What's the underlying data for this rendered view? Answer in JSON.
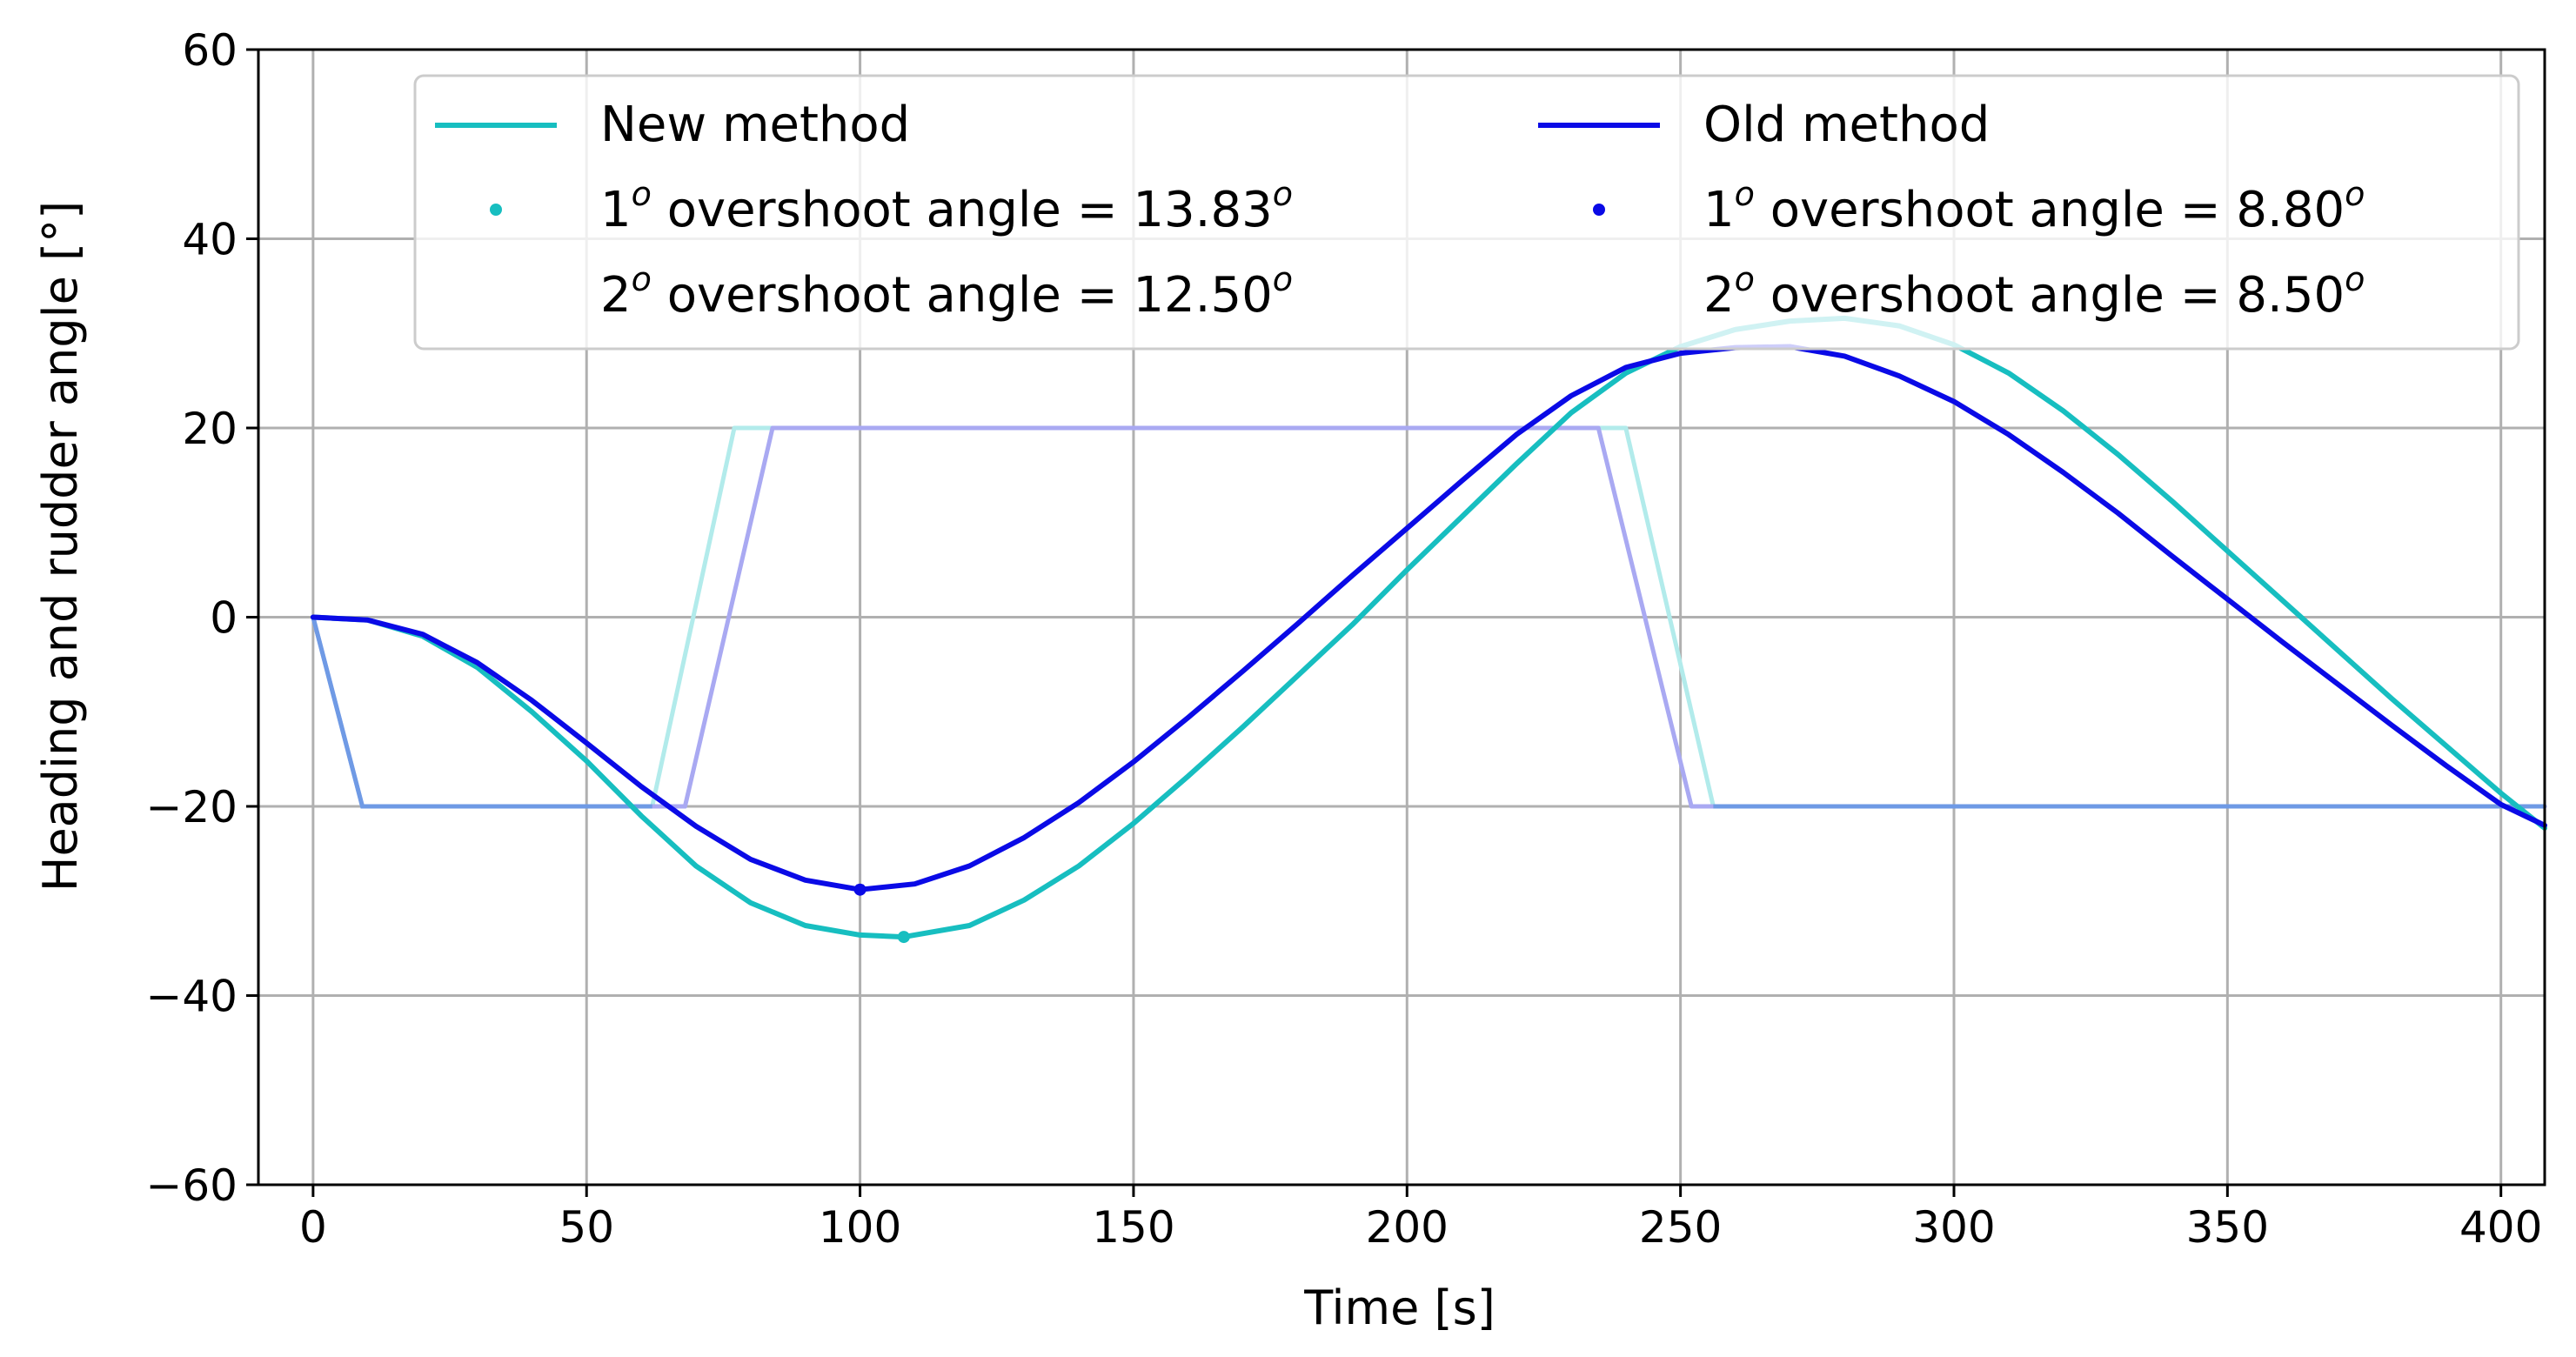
{
  "chart_data": {
    "type": "line",
    "title": "",
    "xlabel": "Time [s]",
    "ylabel": "Heading and rudder angle  [°]",
    "xlim": [
      -10,
      408
    ],
    "ylim": [
      -60,
      60
    ],
    "grid": true,
    "legend_position": "top",
    "xticks": [
      0,
      50,
      100,
      150,
      200,
      250,
      300,
      350,
      400
    ],
    "yticks": [
      60,
      40,
      20,
      0,
      -20,
      -40,
      -60
    ],
    "xtick_labels": [
      "0",
      "50",
      "100",
      "150",
      "200",
      "250",
      "300",
      "350",
      "400"
    ],
    "ytick_labels": [
      "60",
      "40",
      "20",
      "0",
      "−20",
      "−40",
      "−60"
    ],
    "colors": {
      "new_method": "#17bec0",
      "old_method": "#0a0ae6",
      "new_rudder": "#b2ebeb",
      "old_rudder": "#a9a9f2",
      "common_rudder": "#6f9ae5",
      "grid": "#b0b0b0"
    },
    "series": [
      {
        "name": "New method",
        "role": "heading",
        "color": "#17bec0",
        "x": [
          0,
          10,
          20,
          30,
          40,
          50,
          60,
          70,
          80,
          90,
          100,
          108,
          120,
          130,
          140,
          150,
          160,
          170,
          180,
          190,
          200,
          210,
          220,
          230,
          240,
          250,
          260,
          270,
          280,
          290,
          300,
          310,
          320,
          330,
          340,
          350,
          360,
          370,
          380,
          390,
          400,
          408
        ],
        "y": [
          0,
          -0.3,
          -2,
          -5.3,
          -10,
          -15.2,
          -21,
          -26.3,
          -30.2,
          -32.6,
          -33.6,
          -33.8,
          -32.6,
          -29.9,
          -26.3,
          -21.8,
          -16.8,
          -11.6,
          -6.2,
          -0.8,
          5,
          10.6,
          16.2,
          21.6,
          25.8,
          28.6,
          30.4,
          31.3,
          31.6,
          30.8,
          28.8,
          25.8,
          21.8,
          17.2,
          12.2,
          7,
          1.8,
          -3.4,
          -8.6,
          -13.6,
          -18.6,
          -22.3
        ]
      },
      {
        "name": "Old method",
        "role": "heading",
        "color": "#0a0ae6",
        "x": [
          0,
          10,
          20,
          30,
          40,
          50,
          60,
          70,
          80,
          90,
          100,
          110,
          120,
          130,
          140,
          150,
          160,
          170,
          180,
          190,
          200,
          210,
          220,
          230,
          240,
          250,
          260,
          270,
          280,
          290,
          300,
          310,
          320,
          330,
          340,
          350,
          360,
          370,
          380,
          390,
          400,
          408
        ],
        "y": [
          0,
          -0.3,
          -1.8,
          -4.8,
          -8.8,
          -13.3,
          -17.9,
          -22.1,
          -25.6,
          -27.8,
          -28.8,
          -28.2,
          -26.3,
          -23.3,
          -19.6,
          -15.3,
          -10.6,
          -5.7,
          -0.7,
          4.4,
          9.4,
          14.4,
          19.3,
          23.4,
          26.4,
          27.9,
          28.5,
          28.6,
          27.6,
          25.5,
          22.8,
          19.3,
          15.3,
          11,
          6.4,
          1.9,
          -2.6,
          -7,
          -11.4,
          -15.7,
          -19.8,
          -22
        ]
      },
      {
        "name": "New method rudder",
        "role": "rudder",
        "color": "#b2ebeb",
        "x": [
          0,
          9,
          62,
          77,
          84,
          240,
          256,
          408
        ],
        "y": [
          0,
          -20,
          -20,
          20,
          20,
          20,
          -20,
          -20
        ]
      },
      {
        "name": "Old method rudder",
        "role": "rudder",
        "color": "#a9a9f2",
        "x": [
          0,
          9,
          68,
          84,
          235,
          252,
          408
        ],
        "y": [
          0,
          -20,
          -20,
          20,
          20,
          -20,
          -20
        ]
      }
    ],
    "markers": [
      {
        "series": "New method",
        "x": 108,
        "y": -33.8,
        "label": "1st overshoot angle = 13.83"
      },
      {
        "series": "Old method",
        "x": 100,
        "y": -28.8,
        "label": "1st overshoot angle = 8.80"
      }
    ],
    "legend": {
      "columns": [
        {
          "line_label": "New method",
          "first_prefix": "1",
          "first_text": " overshoot angle ",
          "first_value": "13.83",
          "second_prefix": "2",
          "second_text": " overshoot angle ",
          "second_value": "12.50",
          "sup": "o",
          "equals": "= "
        },
        {
          "line_label": "Old method",
          "first_prefix": "1",
          "first_text": " overshoot angle ",
          "first_value": "8.80",
          "second_prefix": "2",
          "second_text": " overshoot angle ",
          "second_value": "8.50",
          "sup": "o",
          "equals": "= "
        }
      ]
    }
  }
}
